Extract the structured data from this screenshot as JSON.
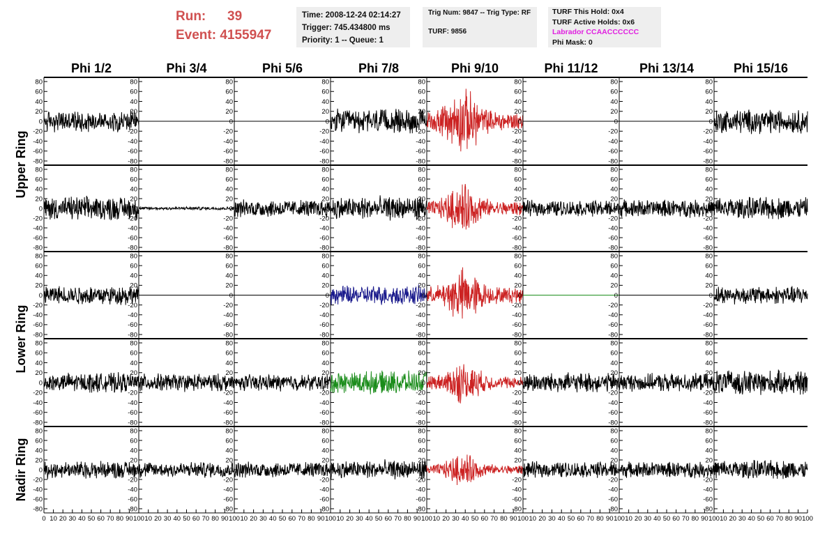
{
  "header": {
    "run_label": "Run:",
    "run_value": "39",
    "event_label": "Event:",
    "event_value": "4155947",
    "time": "Time: 2008-12-24 02:14:27",
    "trigger": "Trigger: 745.434800 ms",
    "priority": "Priority: 1 -- Queue: 1",
    "trig_num": "Trig Num: 9847 -- Trig Type: RF",
    "turf": "TURF: 9856",
    "turf_this_hold": "TURF This Hold: 0x4",
    "turf_active_holds": "TURF Active Holds: 0x6",
    "labrador": "Labrador CCAACCCCCC",
    "phi_mask": "Phi Mask: 0",
    "colors": {
      "run_text": "#d05050",
      "labrador_text": "#e020e0",
      "box_bg": "#eeeeee"
    }
  },
  "chart_data": {
    "type": "line",
    "columns": [
      "Phi 1/2",
      "Phi 3/4",
      "Phi 5/6",
      "Phi 7/8",
      "Phi 9/10",
      "Phi 11/12",
      "Phi 13/14",
      "Phi 15/16"
    ],
    "ring_labels": [
      "Upper Ring",
      "Lower Ring",
      "Nadir Ring"
    ],
    "rows_per_ring": [
      2,
      2,
      1
    ],
    "ylim": [
      -80,
      80
    ],
    "yticks": [
      "80",
      "60",
      "40",
      "20",
      "0",
      "-20",
      "-40",
      "-60",
      "-80"
    ],
    "xlim": [
      0,
      100
    ],
    "xticks": [
      "0",
      "10",
      "20",
      "30",
      "40",
      "50",
      "60",
      "70",
      "80",
      "90",
      "100"
    ],
    "colors": {
      "default": "#000000",
      "red": "#cc2222",
      "blue": "#1a1a8c",
      "green": "#1a8c1a",
      "flat_green": "#1a8c1a"
    },
    "panels": [
      [
        "noise:13",
        "flat",
        "flat",
        "noise:15",
        "red:26",
        "flat",
        "flat",
        "noise:15"
      ],
      [
        "noise:15",
        "small:2",
        "noise:11",
        "noise:15",
        "red:20",
        "noise:10",
        "noise:11",
        "noise:14"
      ],
      [
        "noise:12",
        "flat",
        "flat",
        "blue:12",
        "red:22",
        "flatgreen",
        "flat",
        "noise:11"
      ],
      [
        "noise:12",
        "noise:11",
        "noise:10",
        "green:14",
        "red:17",
        "noise:12",
        "noise:11",
        "noise:15"
      ],
      [
        "noise:11",
        "noise:10",
        "noise:10",
        "noise:12",
        "red:13",
        "noise:10",
        "noise:10",
        "noise:12"
      ]
    ]
  }
}
